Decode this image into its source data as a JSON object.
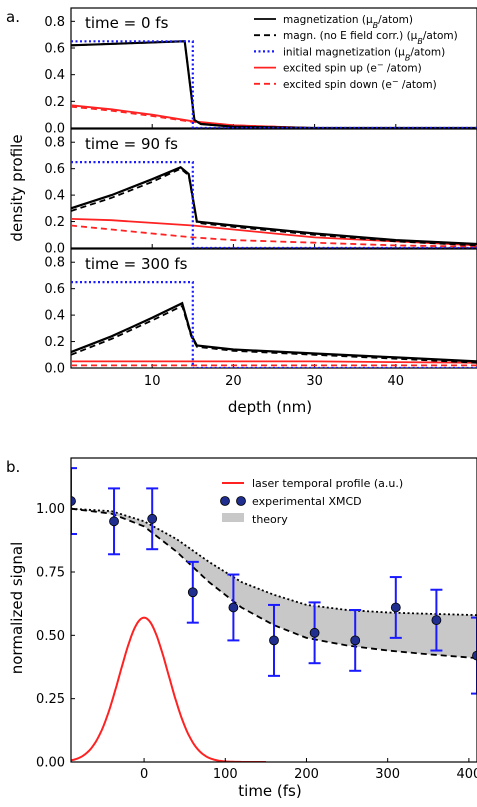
{
  "chart_data": [
    {
      "panel_label": "a.",
      "type": "line",
      "ylabel": "density profile",
      "xlabel": "depth (nm)",
      "xlim": [
        0,
        50
      ],
      "ylim": [
        0,
        0.9
      ],
      "xticks": [
        "10",
        "20",
        "30",
        "40"
      ],
      "yticks": [
        "0.0",
        "0.2",
        "0.4",
        "0.6",
        "0.8"
      ],
      "legend": {
        "placement": "top-right of first subplot",
        "entries": [
          {
            "label": "magnetization (μ",
            "sub": "B",
            "tail": "/atom)",
            "style": "solid",
            "color": "#000000"
          },
          {
            "label": "magn. (no E field corr.) (μ",
            "sub": "B",
            "tail": "/atom)",
            "style": "dashed",
            "color": "#000000"
          },
          {
            "label": "initial magnetization (μ",
            "sub": "B",
            "tail": "/atom)",
            "style": "dotted",
            "color": "#1a1aff"
          },
          {
            "label": "excited spin up (e",
            "sup": "−",
            "tail": " /atom)",
            "style": "solid",
            "color": "#ff2222"
          },
          {
            "label": "excited spin down (e",
            "sup": "−",
            "tail": " /atom)",
            "style": "dashed",
            "color": "#ff2222"
          }
        ]
      },
      "subplots": [
        {
          "label": "time = 0 fs",
          "series": [
            {
              "kind": "magnetization",
              "x": [
                0,
                14,
                15.2,
                16,
                20,
                30,
                50
              ],
              "y": [
                0.62,
                0.65,
                0.06,
                0.03,
                0.01,
                0.0,
                0.0
              ]
            },
            {
              "kind": "magn_no_E",
              "x": [
                0,
                14,
                15.2,
                16,
                20,
                30,
                50
              ],
              "y": [
                0.62,
                0.65,
                0.06,
                0.03,
                0.01,
                0.0,
                0.0
              ]
            },
            {
              "kind": "initial",
              "x": [
                0,
                15,
                15,
                50
              ],
              "y": [
                0.65,
                0.65,
                0.0,
                0.0
              ]
            },
            {
              "kind": "spin_up",
              "x": [
                0,
                5,
                10,
                15,
                20,
                25,
                30,
                40,
                50
              ],
              "y": [
                0.17,
                0.14,
                0.1,
                0.05,
                0.02,
                0.01,
                0.0,
                0.0,
                0.0
              ]
            },
            {
              "kind": "spin_down",
              "x": [
                0,
                5,
                10,
                15,
                20,
                25,
                30,
                40,
                50
              ],
              "y": [
                0.16,
                0.13,
                0.09,
                0.045,
                0.02,
                0.01,
                0.0,
                0.0,
                0.0
              ]
            }
          ]
        },
        {
          "label": "time = 90 fs",
          "series": [
            {
              "kind": "magnetization",
              "x": [
                0,
                5,
                10,
                13.5,
                14.5,
                15.5,
                20,
                30,
                40,
                50
              ],
              "y": [
                0.3,
                0.4,
                0.52,
                0.61,
                0.56,
                0.2,
                0.17,
                0.11,
                0.06,
                0.03
              ]
            },
            {
              "kind": "magn_no_E",
              "x": [
                0,
                5,
                10,
                13.5,
                14.5,
                15.5,
                20,
                30,
                40,
                50
              ],
              "y": [
                0.28,
                0.38,
                0.5,
                0.6,
                0.55,
                0.19,
                0.16,
                0.1,
                0.05,
                0.02
              ]
            },
            {
              "kind": "initial",
              "x": [
                0,
                15,
                15,
                50
              ],
              "y": [
                0.65,
                0.65,
                0.0,
                0.0
              ]
            },
            {
              "kind": "spin_up",
              "x": [
                0,
                5,
                10,
                15,
                20,
                25,
                30,
                40,
                50
              ],
              "y": [
                0.22,
                0.21,
                0.19,
                0.17,
                0.14,
                0.11,
                0.08,
                0.05,
                0.02
              ]
            },
            {
              "kind": "spin_down",
              "x": [
                0,
                5,
                10,
                15,
                20,
                25,
                30,
                40,
                50
              ],
              "y": [
                0.17,
                0.14,
                0.11,
                0.08,
                0.06,
                0.05,
                0.04,
                0.02,
                0.01
              ]
            }
          ]
        },
        {
          "label": "time = 300 fs",
          "series": [
            {
              "kind": "magnetization",
              "x": [
                0,
                5,
                10,
                13.7,
                14.8,
                15.5,
                20,
                30,
                40,
                50
              ],
              "y": [
                0.12,
                0.24,
                0.38,
                0.49,
                0.25,
                0.17,
                0.14,
                0.11,
                0.08,
                0.05
              ]
            },
            {
              "kind": "magn_no_E",
              "x": [
                0,
                5,
                10,
                13.7,
                14.8,
                15.5,
                20,
                30,
                40,
                50
              ],
              "y": [
                0.1,
                0.22,
                0.36,
                0.47,
                0.24,
                0.16,
                0.13,
                0.1,
                0.07,
                0.04
              ]
            },
            {
              "kind": "initial",
              "x": [
                0,
                15,
                15,
                50
              ],
              "y": [
                0.65,
                0.65,
                0.0,
                0.0
              ]
            },
            {
              "kind": "spin_up",
              "x": [
                0,
                10,
                20,
                30,
                40,
                50
              ],
              "y": [
                0.05,
                0.05,
                0.05,
                0.05,
                0.045,
                0.04
              ]
            },
            {
              "kind": "spin_down",
              "x": [
                0,
                10,
                20,
                30,
                40,
                50
              ],
              "y": [
                0.02,
                0.02,
                0.02,
                0.02,
                0.02,
                0.02
              ]
            }
          ]
        }
      ]
    },
    {
      "panel_label": "b.",
      "type": "line",
      "xlabel": "time (fs)",
      "ylabel": "normalized signal",
      "xlim": [
        -90,
        410
      ],
      "ylim": [
        0,
        1.2
      ],
      "xticks": [
        "0",
        "100",
        "200",
        "300",
        "400"
      ],
      "yticks": [
        "0.00",
        "0.25",
        "0.50",
        "0.75",
        "1.00"
      ],
      "legend": {
        "placement": "top-right",
        "entries": [
          {
            "label": "laser temporal profile (a.u.)",
            "style": "line",
            "color": "#ff2222"
          },
          {
            "label": "experimental XMCD",
            "style": "markers",
            "color": "#1f2e8f"
          },
          {
            "label": "theory",
            "style": "patch",
            "color": "#c8c8c8"
          }
        ]
      },
      "theory_upper": {
        "x": [
          -90,
          -40,
          0,
          40,
          80,
          120,
          160,
          200,
          250,
          300,
          350,
          410
        ],
        "y": [
          1.0,
          0.99,
          0.95,
          0.88,
          0.79,
          0.71,
          0.66,
          0.62,
          0.6,
          0.59,
          0.585,
          0.58
        ]
      },
      "theory_lower": {
        "x": [
          -90,
          -40,
          0,
          40,
          80,
          120,
          160,
          200,
          250,
          300,
          350,
          410
        ],
        "y": [
          1.0,
          0.98,
          0.93,
          0.83,
          0.71,
          0.61,
          0.54,
          0.49,
          0.46,
          0.44,
          0.425,
          0.41
        ]
      },
      "laser_profile": {
        "center": 0,
        "sigma": 30,
        "amplitude": 0.57
      },
      "xmcd": {
        "x": [
          -90,
          -37,
          10,
          60,
          110,
          160,
          210,
          260,
          310,
          360,
          410
        ],
        "y": [
          1.03,
          0.95,
          0.96,
          0.67,
          0.61,
          0.48,
          0.51,
          0.48,
          0.61,
          0.56,
          0.42
        ],
        "err": [
          0.13,
          0.13,
          0.12,
          0.12,
          0.13,
          0.14,
          0.12,
          0.12,
          0.12,
          0.12,
          0.15
        ]
      }
    }
  ]
}
